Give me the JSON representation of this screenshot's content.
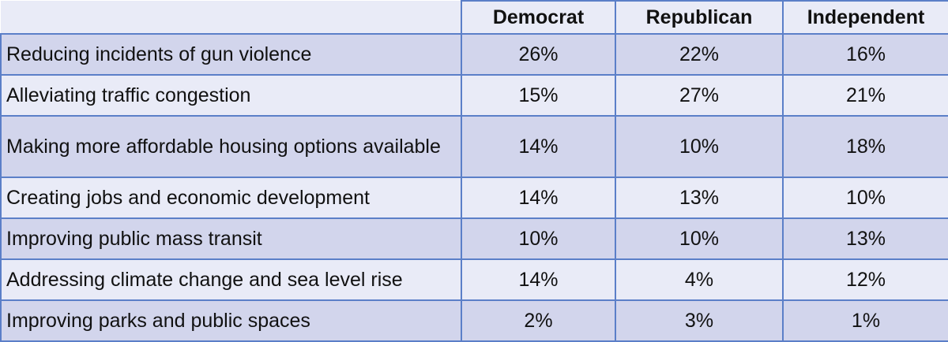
{
  "chart_data": {
    "type": "table",
    "columns": [
      "Democrat",
      "Republican",
      "Independent"
    ],
    "rows": [
      {
        "label": "Reducing incidents of gun violence",
        "values": [
          "26%",
          "22%",
          "16%"
        ]
      },
      {
        "label": "Alleviating traffic congestion",
        "values": [
          "15%",
          "27%",
          "21%"
        ]
      },
      {
        "label": "Making more affordable housing options available",
        "values": [
          "14%",
          "10%",
          "18%"
        ]
      },
      {
        "label": "Creating jobs and economic development",
        "values": [
          "14%",
          "13%",
          "10%"
        ]
      },
      {
        "label": "Improving public mass transit",
        "values": [
          "10%",
          "10%",
          "13%"
        ]
      },
      {
        "label": "Addressing climate change and sea level rise",
        "values": [
          "14%",
          "4%",
          "12%"
        ]
      },
      {
        "label": "Improving parks and public spaces",
        "values": [
          "2%",
          "3%",
          "1%"
        ]
      }
    ]
  },
  "colors": {
    "border": "#5b7fc8",
    "row_shaded": "#d2d5ec",
    "row_light": "#e9ebf7"
  }
}
